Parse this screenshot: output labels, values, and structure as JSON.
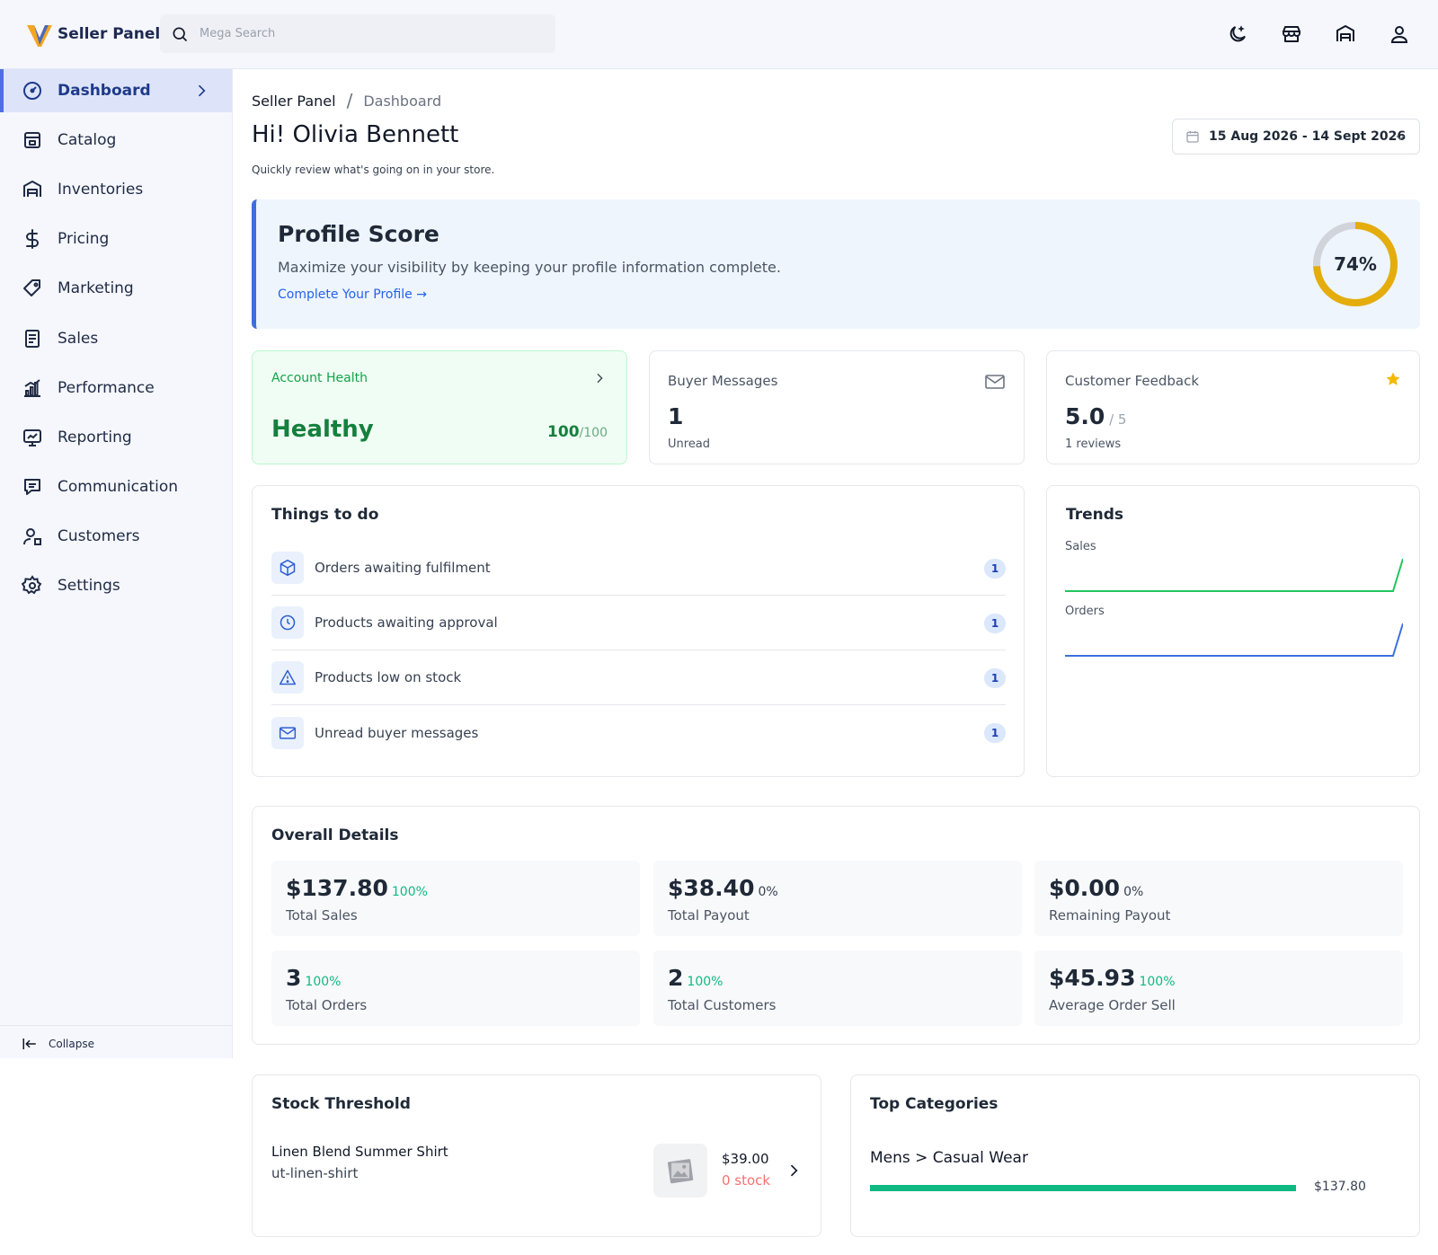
{
  "header": {
    "app_name": "Seller Panel",
    "search_placeholder": "Mega Search",
    "icons": [
      "moon-icon",
      "store-icon",
      "warehouse-icon",
      "user-icon"
    ]
  },
  "sidebar": {
    "items": [
      {
        "label": "Dashboard",
        "icon": "dashboard-icon",
        "active": true
      },
      {
        "label": "Catalog",
        "icon": "catalog-icon"
      },
      {
        "label": "Inventories",
        "icon": "warehouse-icon"
      },
      {
        "label": "Pricing",
        "icon": "dollar-icon"
      },
      {
        "label": "Marketing",
        "icon": "tag-icon"
      },
      {
        "label": "Sales",
        "icon": "receipt-icon"
      },
      {
        "label": "Performance",
        "icon": "bar-chart-icon"
      },
      {
        "label": "Reporting",
        "icon": "report-icon"
      },
      {
        "label": "Communication",
        "icon": "chat-icon"
      },
      {
        "label": "Customers",
        "icon": "customers-icon"
      },
      {
        "label": "Settings",
        "icon": "gear-icon"
      }
    ],
    "collapse_label": "Collapse"
  },
  "page": {
    "breadcrumb_root": "Seller Panel",
    "breadcrumb_sep": "/",
    "breadcrumb_current": "Dashboard",
    "greeting": "Hi! Olivia Bennett",
    "subtitle": "Quickly review what's going on in your store.",
    "date_range": "15 Aug 2026 - 14 Sept 2026"
  },
  "profile": {
    "title": "Profile Score",
    "description": "Maximize your visibility by keeping your profile information complete.",
    "link": "Complete Your Profile →",
    "score_label": "74%",
    "score": 0.74,
    "ring_color": "#e5ad0b"
  },
  "account_health": {
    "title": "Account Health",
    "status": "Healthy",
    "score": "100",
    "max": "/100"
  },
  "buyer_messages": {
    "title": "Buyer Messages",
    "count": "1",
    "sub": "Unread"
  },
  "customer_feedback": {
    "title": "Customer Feedback",
    "rating": "5.0",
    "max": " / 5",
    "sub": "1 reviews"
  },
  "todo": {
    "title": "Things to do",
    "items": [
      {
        "label": "Orders awaiting fulfilment",
        "count": "1",
        "icon": "box-icon"
      },
      {
        "label": "Products awaiting approval",
        "count": "1",
        "icon": "clock-icon"
      },
      {
        "label": "Products low on stock",
        "count": "1",
        "icon": "warning-icon"
      },
      {
        "label": "Unread buyer messages",
        "count": "1",
        "icon": "mail-icon"
      }
    ]
  },
  "trends": {
    "title": "Trends",
    "sales_label": "Sales",
    "orders_label": "Orders",
    "sales_color": "#22c55e",
    "orders_color": "#3b6fe0"
  },
  "overall": {
    "title": "Overall Details",
    "stats": [
      {
        "value": "$137.80",
        "pct": "100%",
        "label": "Total Sales",
        "trend": "up"
      },
      {
        "value": "$38.40",
        "pct": "0%",
        "label": "Total Payout",
        "trend": "flat"
      },
      {
        "value": "$0.00",
        "pct": "0%",
        "label": "Remaining Payout",
        "trend": "flat"
      },
      {
        "value": "3",
        "pct": "100%",
        "label": "Total Orders",
        "trend": "up"
      },
      {
        "value": "2",
        "pct": "100%",
        "label": "Total Customers",
        "trend": "up"
      },
      {
        "value": "$45.93",
        "pct": "100%",
        "label": "Average Order Sell",
        "trend": "up"
      }
    ]
  },
  "stock": {
    "title": "Stock Threshold",
    "product_name": "Linen Blend Summer Shirt",
    "sku": "ut-linen-shirt",
    "price": "$39.00",
    "qty": "0 stock"
  },
  "top_categories": {
    "title": "Top Categories",
    "category": "Mens > Casual Wear",
    "value": "$137.80",
    "share": 1.0,
    "bar_color": "#10b981"
  }
}
